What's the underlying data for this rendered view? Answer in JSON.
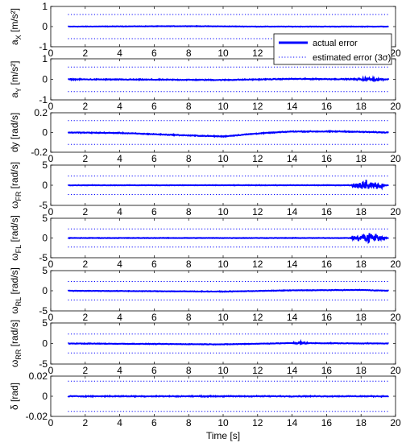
{
  "figure": {
    "xlabel": "Time [s]",
    "legend": {
      "placement": "inside top-right of first panel",
      "entries": [
        {
          "label": "actual error",
          "style": "solid",
          "color": "#0000ff"
        },
        {
          "label": "estimated error (3σ)",
          "style": "dotted",
          "color": "#0000ff"
        }
      ]
    },
    "series_color": "#0000ff"
  },
  "chart_data": [
    {
      "type": "line",
      "ylabel": "a_X [m/s²]",
      "ylim": [
        -1,
        1
      ],
      "yticks": [
        "1",
        "0",
        "-1"
      ],
      "xlim": [
        0,
        20
      ],
      "xticks": [
        "0",
        "2",
        "4",
        "6",
        "8",
        "10",
        "12",
        "14",
        "16",
        "18",
        "20"
      ],
      "bound": 0.6,
      "x": [
        1.0,
        19.6
      ],
      "noise": 0.015,
      "drift": [
        [
          1,
          0
        ],
        [
          8,
          0.02
        ],
        [
          12,
          0
        ],
        [
          19.6,
          0
        ]
      ],
      "burst": null
    },
    {
      "type": "line",
      "ylabel": "a_Y [m/s²]",
      "ylim": [
        -1,
        1
      ],
      "yticks": [
        "1",
        "0",
        "-1"
      ],
      "xlim": [
        0,
        20
      ],
      "xticks": [
        "0",
        "2",
        "4",
        "6",
        "8",
        "10",
        "12",
        "14",
        "16",
        "18",
        "20"
      ],
      "bound": 0.6,
      "x": [
        1.0,
        19.6
      ],
      "noise": 0.03,
      "drift": [
        [
          1,
          0
        ],
        [
          10,
          -0.03
        ],
        [
          14,
          0.02
        ],
        [
          19.6,
          0
        ]
      ],
      "burst": [
        17.5,
        19.5,
        0.1
      ]
    },
    {
      "type": "line",
      "ylabel": "dy [rad/s]",
      "ylim": [
        -0.2,
        0.2
      ],
      "yticks": [
        "0.2",
        "0",
        "-0.2"
      ],
      "xlim": [
        0,
        20
      ],
      "xticks": [
        "0",
        "2",
        "4",
        "6",
        "8",
        "10",
        "12",
        "14",
        "16",
        "18",
        "20"
      ],
      "bound": 0.12,
      "x": [
        1.0,
        19.6
      ],
      "noise": 0.006,
      "drift": [
        [
          1,
          0
        ],
        [
          4,
          -0.005
        ],
        [
          8,
          -0.03
        ],
        [
          10,
          -0.04
        ],
        [
          12,
          -0.01
        ],
        [
          14,
          0.01
        ],
        [
          17,
          0.01
        ],
        [
          19.6,
          0
        ]
      ],
      "burst": null
    },
    {
      "type": "line",
      "ylabel": "ω_FR [rad/s]",
      "ylim": [
        -5,
        5
      ],
      "yticks": [
        "5",
        "0",
        "-5"
      ],
      "xlim": [
        0,
        20
      ],
      "xticks": [
        "0",
        "2",
        "4",
        "6",
        "8",
        "10",
        "12",
        "14",
        "16",
        "18",
        "20"
      ],
      "bound": 2.3,
      "x": [
        1.0,
        19.6
      ],
      "noise": 0.08,
      "drift": [
        [
          1,
          0
        ],
        [
          19.6,
          0
        ]
      ],
      "burst": [
        17.3,
        19.5,
        1.6
      ]
    },
    {
      "type": "line",
      "ylabel": "ω_FL [rad/s]",
      "ylim": [
        -5,
        5
      ],
      "yticks": [
        "5",
        "0",
        "-5"
      ],
      "xlim": [
        0,
        20
      ],
      "xticks": [
        "0",
        "2",
        "4",
        "6",
        "8",
        "10",
        "12",
        "14",
        "16",
        "18",
        "20"
      ],
      "bound": 2.3,
      "x": [
        1.0,
        19.6
      ],
      "noise": 0.08,
      "drift": [
        [
          1,
          0
        ],
        [
          19.6,
          0
        ]
      ],
      "burst": [
        17.3,
        19.5,
        1.8
      ]
    },
    {
      "type": "line",
      "ylabel": "ω_RL [rad/s]",
      "ylim": [
        -5,
        5
      ],
      "yticks": [
        "5",
        "0",
        "-5"
      ],
      "xlim": [
        0,
        20
      ],
      "xticks": [
        "0",
        "2",
        "4",
        "6",
        "8",
        "10",
        "12",
        "14",
        "16",
        "18",
        "20"
      ],
      "bound": 2.3,
      "x": [
        1.0,
        19.6
      ],
      "noise": 0.1,
      "drift": [
        [
          1,
          0
        ],
        [
          10,
          -0.2
        ],
        [
          14,
          0.1
        ],
        [
          18,
          0.2
        ],
        [
          19.6,
          0
        ]
      ],
      "burst": null
    },
    {
      "type": "line",
      "ylabel": "ω_RR [rad/s]",
      "ylim": [
        -5,
        5
      ],
      "yticks": [
        "5",
        "0",
        "-5"
      ],
      "xlim": [
        0,
        20
      ],
      "xticks": [
        "0",
        "2",
        "4",
        "6",
        "8",
        "10",
        "12",
        "14",
        "16",
        "18",
        "20"
      ],
      "bound": 2.3,
      "x": [
        1.0,
        19.6
      ],
      "noise": 0.1,
      "drift": [
        [
          1,
          0
        ],
        [
          10,
          -0.2
        ],
        [
          14,
          0.1
        ],
        [
          19.6,
          0
        ]
      ],
      "burst": [
        14.0,
        15.0,
        0.5
      ]
    },
    {
      "type": "line",
      "ylabel": "δ [rad]",
      "ylim": [
        -0.02,
        0.02
      ],
      "yticks": [
        "0.02",
        "0",
        "-0.02"
      ],
      "xlim": [
        0,
        20
      ],
      "xticks": [
        "0",
        "2",
        "4",
        "6",
        "8",
        "10",
        "12",
        "14",
        "16",
        "18",
        "20"
      ],
      "bound": 0.015,
      "x": [
        1.0,
        19.6
      ],
      "noise": 0.0006,
      "drift": [
        [
          1,
          0
        ],
        [
          19.6,
          0
        ]
      ],
      "burst": null
    }
  ]
}
